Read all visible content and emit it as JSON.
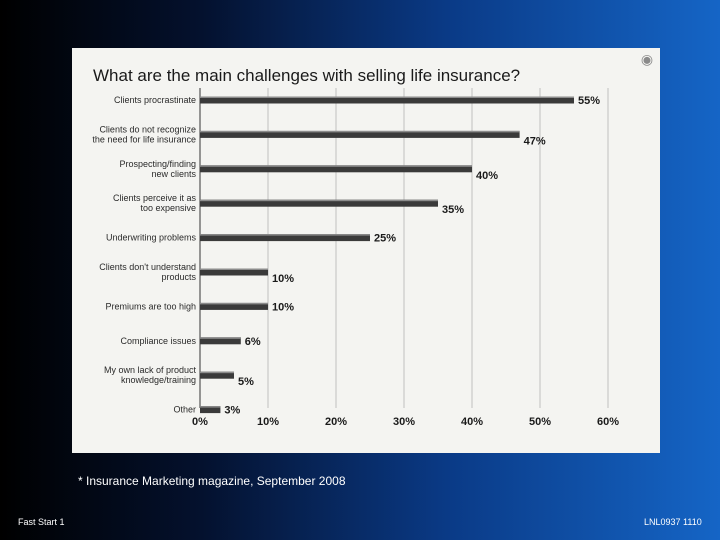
{
  "chart_data": {
    "type": "bar",
    "orientation": "horizontal",
    "title": "What are the main challenges with selling life insurance?",
    "categories": [
      [
        "Clients procrastinate"
      ],
      [
        "Clients do not recognize",
        "the need for life insurance"
      ],
      [
        "Prospecting/finding",
        "new clients"
      ],
      [
        "Clients perceive it as",
        "too expensive"
      ],
      [
        "Underwriting problems"
      ],
      [
        "Clients don't understand",
        "products"
      ],
      [
        "Premiums are too high"
      ],
      [
        "Compliance issues"
      ],
      [
        "My own lack of product",
        "knowledge/training"
      ],
      [
        "Other"
      ]
    ],
    "values": [
      55,
      47,
      40,
      35,
      25,
      10,
      10,
      6,
      5,
      3
    ],
    "value_labels": [
      "55%",
      "47%",
      "40%",
      "35%",
      "25%",
      "10%",
      "10%",
      "6%",
      "5%",
      "3%"
    ],
    "x_ticks": [
      "0%",
      "10%",
      "20%",
      "30%",
      "40%",
      "50%",
      "60%"
    ],
    "xlim": [
      0,
      60
    ],
    "xlabel": "",
    "ylabel": "",
    "grid": true
  },
  "source_note": "* Insurance Marketing magazine, September 2008",
  "footer": {
    "left": "Fast Start 1",
    "right": "LNL0937  1110"
  },
  "colors": {
    "bar": "#3a3a3a",
    "scan_background": "#f4f4f1"
  },
  "icons": {
    "scan_mark": "corner-mark-icon"
  }
}
